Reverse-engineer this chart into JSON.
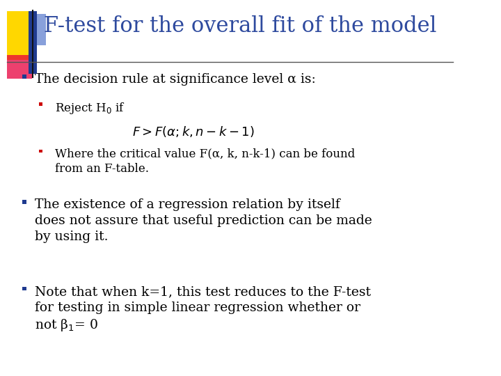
{
  "background_color": "#ffffff",
  "title": "F-test for the overall fit of the model",
  "title_color": "#2E4A9E",
  "title_fontsize": 22,
  "logo_colors": {
    "yellow": "#FFD700",
    "red": "#E8003D",
    "blue_dark": "#1F3A8F",
    "blue_light": "#6080D0"
  },
  "bullet_color": "#1F3A8F",
  "sub_bullet_color": "#CC0000",
  "text_color": "#000000",
  "line_color": "#555555",
  "content": [
    {
      "level": 1,
      "text": "The decision rule at significance level α is:"
    },
    {
      "level": 2,
      "text": "Reject H$_0$ if"
    },
    {
      "level": 3,
      "text": "$F > F(\\alpha; k, n-k-1)$"
    },
    {
      "level": 2,
      "text": "Where the critical value F(α, k, n-k-1) can be found\nfrom an F-table."
    },
    {
      "level": 1,
      "text": "The existence of a regression relation by itself\ndoes not assure that useful prediction can be made\nby using it."
    },
    {
      "level": 1,
      "text": "Note that when k=1, this test reduces to the F-test\nfor testing in simple linear regression whether or\nnot β$_1$= 0"
    }
  ]
}
